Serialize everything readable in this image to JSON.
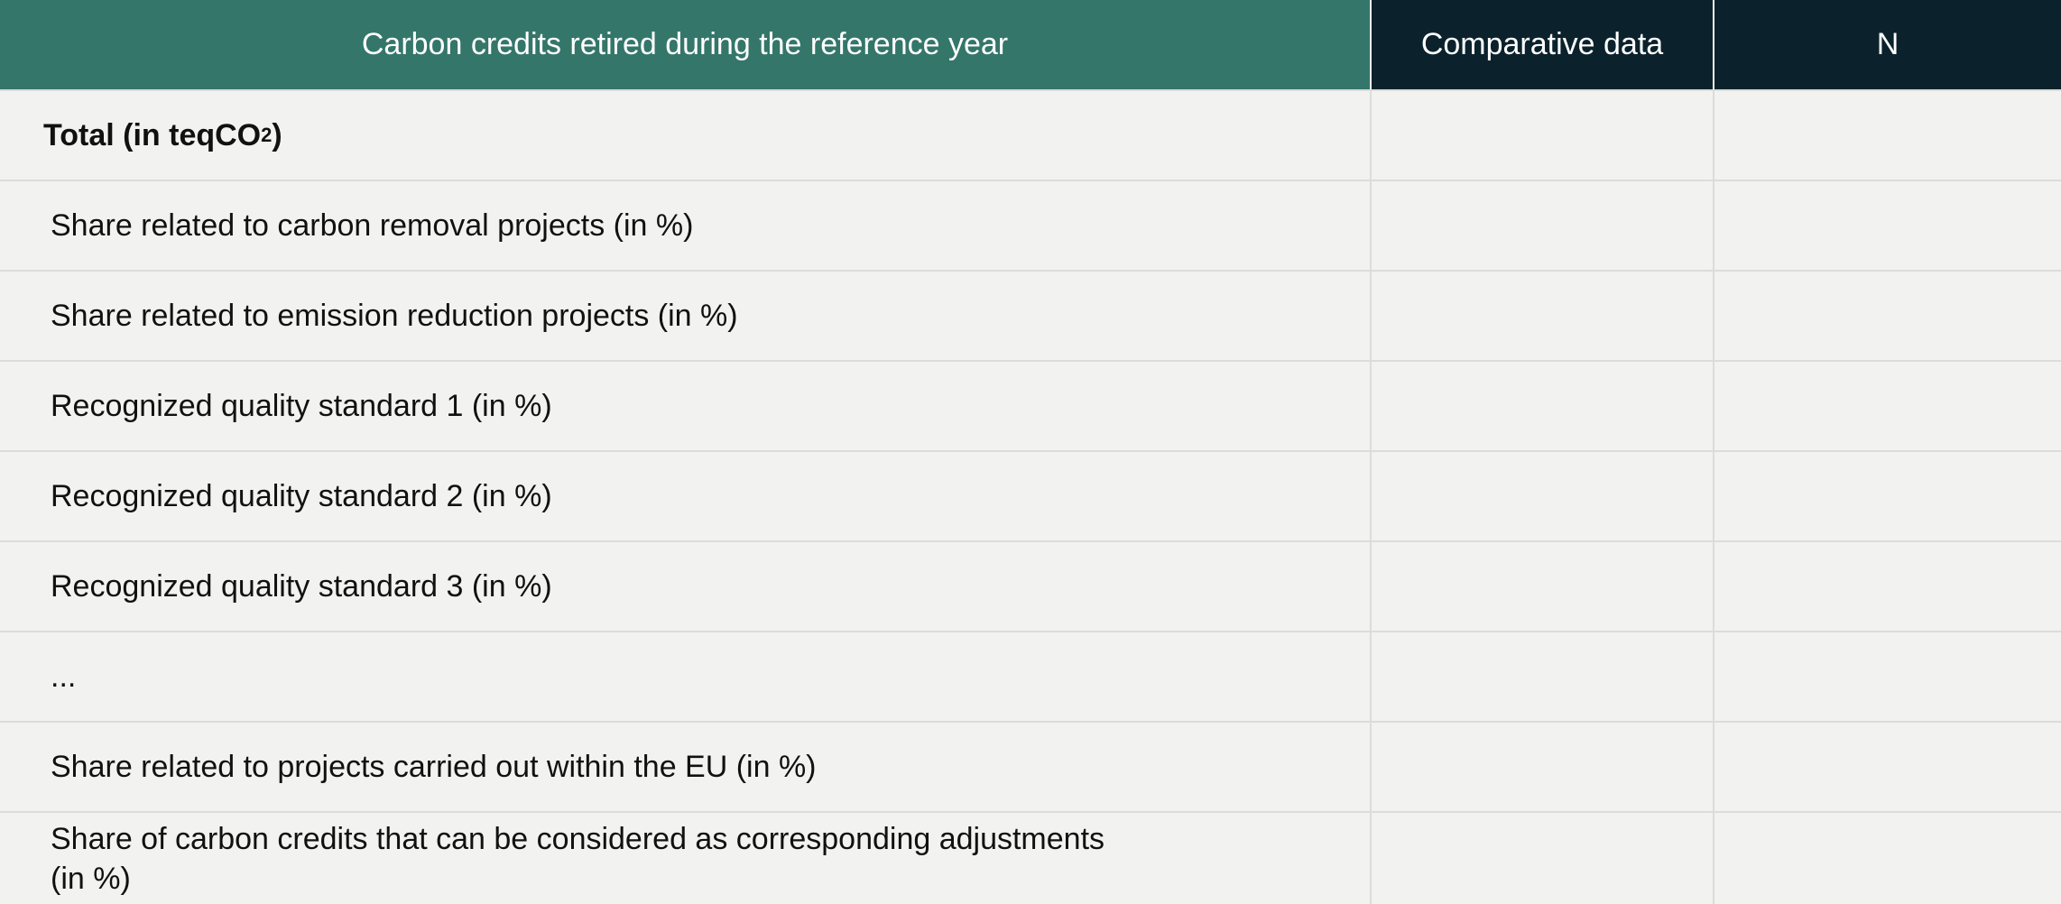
{
  "header": {
    "col1": "Carbon credits retired during the reference year",
    "col2": "Comparative data",
    "col3": "N"
  },
  "total": {
    "label_pre": "Total (in teqCO",
    "label_sub": "2",
    "label_post": ")"
  },
  "rows": [
    {
      "label": "Share related to carbon removal projects (in %)"
    },
    {
      "label": "Share related to emission reduction projects (in %)"
    },
    {
      "label": "Recognized quality standard 1 (in %)"
    },
    {
      "label": "Recognized quality standard 2 (in %)"
    },
    {
      "label": "Recognized quality standard 3 (in %)"
    },
    {
      "label": "..."
    },
    {
      "label": "Share related to projects carried out within the EU (in %)"
    },
    {
      "label": "Share of carbon credits that can be considered as corresponding adjustments (in %)"
    }
  ],
  "colors": {
    "header_main": "#34766a",
    "header_dark": "#0b222c",
    "body_bg": "#f2f2f0"
  }
}
